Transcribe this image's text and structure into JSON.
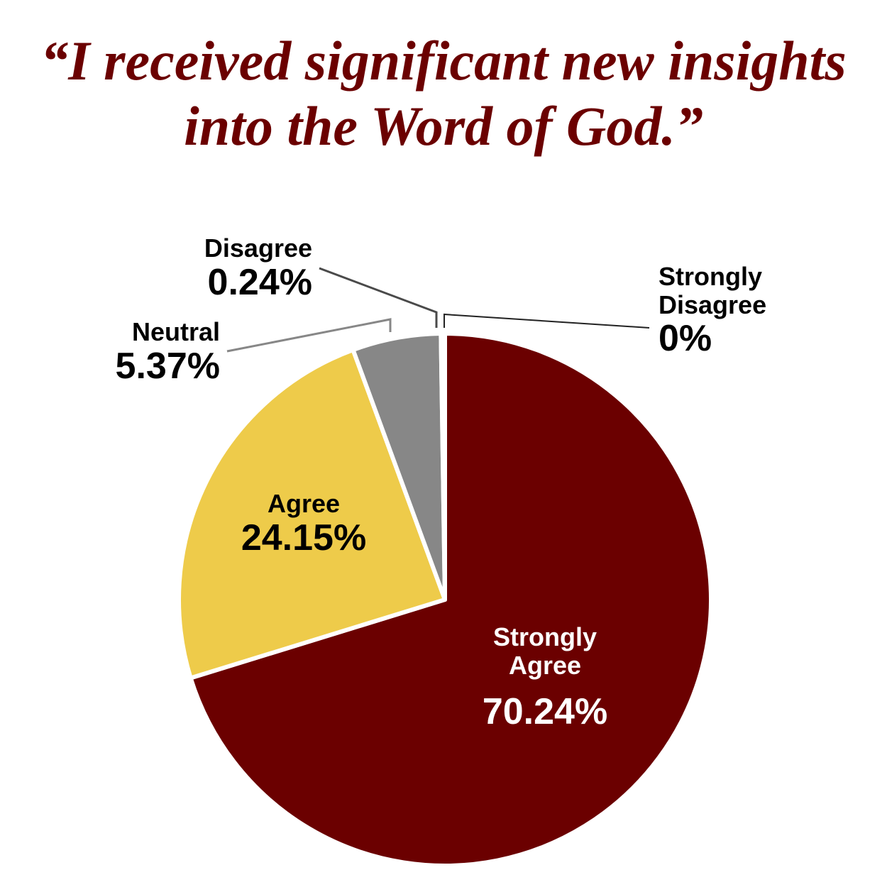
{
  "chart_data": {
    "type": "pie",
    "title": "“I received significant new insights into the Word of God.”",
    "categories": [
      "Strongly Agree",
      "Agree",
      "Neutral",
      "Disagree",
      "Strongly Disagree"
    ],
    "values": [
      70.24,
      24.15,
      5.37,
      0.24,
      0
    ],
    "value_labels": [
      "70.24%",
      "24.15%",
      "5.37%",
      "0.24%",
      "0%"
    ],
    "colors": [
      "#6b0000",
      "#eecb4a",
      "#878787",
      "#4a4a4a",
      "#222222"
    ]
  }
}
